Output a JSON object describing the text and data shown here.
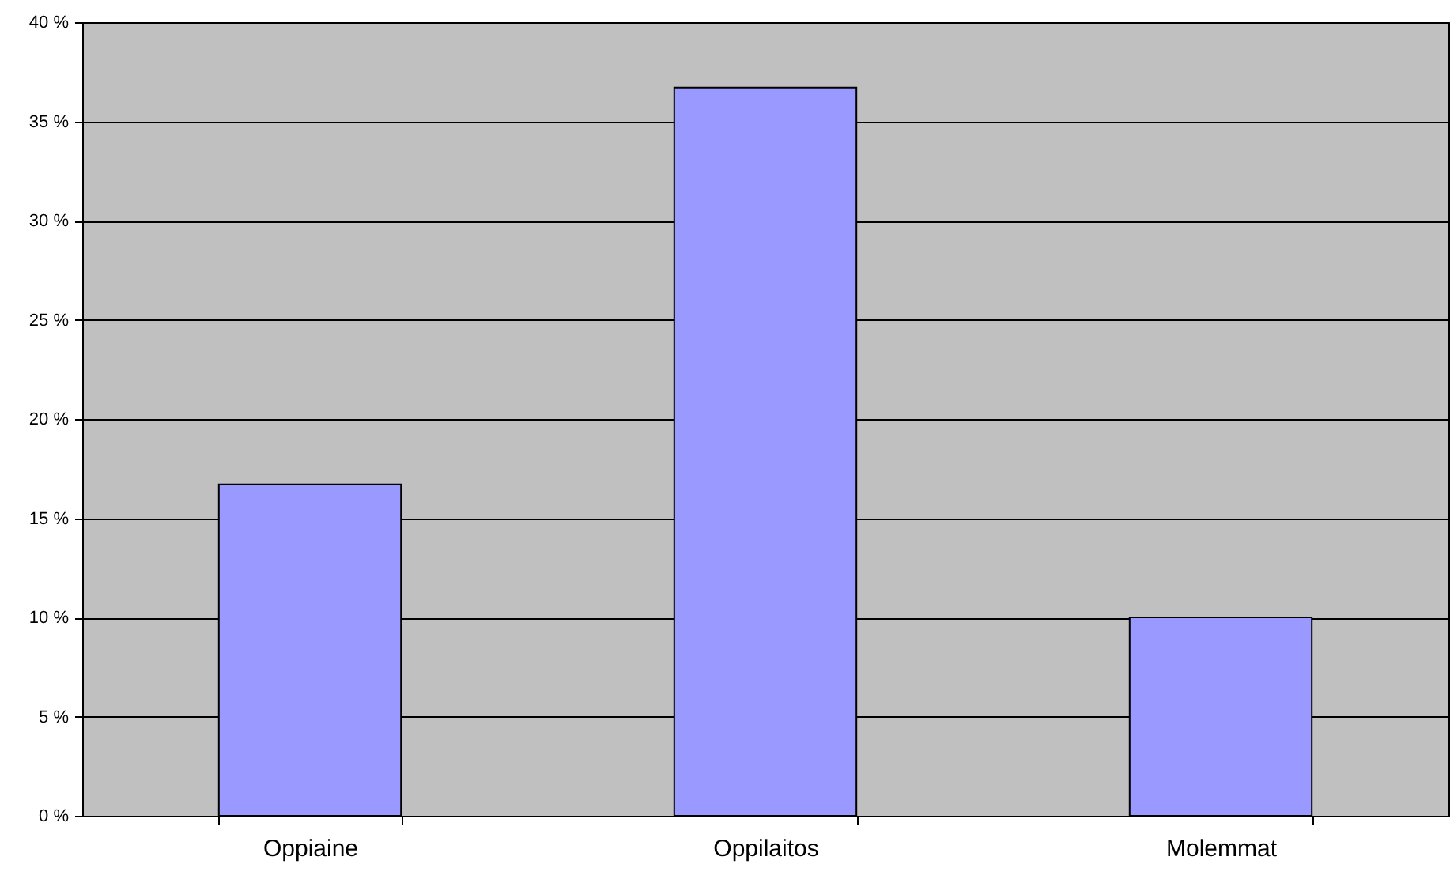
{
  "chart_data": {
    "type": "bar",
    "categories": [
      "Oppiaine",
      "Oppilaitos",
      "Molemmat"
    ],
    "values": [
      16.7,
      36.7,
      10
    ],
    "color": "#9999ff",
    "ylim": [
      0,
      40
    ],
    "yticks": [
      {
        "value": 0,
        "label": "0 %"
      },
      {
        "value": 5,
        "label": "5 %"
      },
      {
        "value": 10,
        "label": "10 %"
      },
      {
        "value": 15,
        "label": "15 %"
      },
      {
        "value": 20,
        "label": "20 %"
      },
      {
        "value": 25,
        "label": "25 %"
      },
      {
        "value": 30,
        "label": "30 %"
      },
      {
        "value": 35,
        "label": "35 %"
      },
      {
        "value": 40,
        "label": "40 %"
      }
    ],
    "grid": "y"
  }
}
